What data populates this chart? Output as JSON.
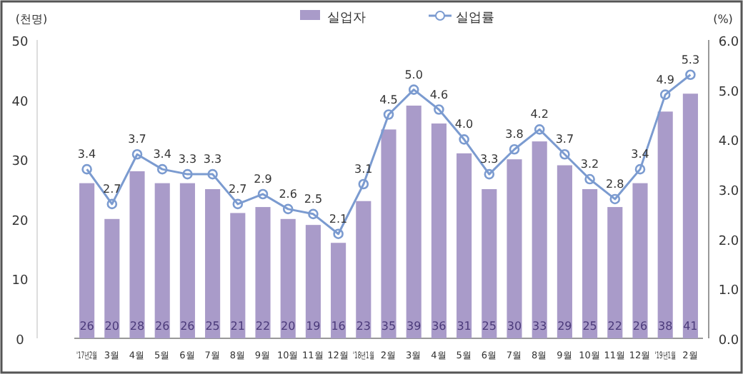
{
  "chart_data": {
    "type": "bar",
    "ylabel": "(천명)",
    "y2label": "(%)",
    "categories": [
      "'17년2월",
      "3월",
      "4월",
      "5월",
      "6월",
      "7월",
      "8월",
      "9월",
      "10월",
      "11월",
      "12월",
      "'18년1월",
      "2월",
      "3월",
      "4월",
      "5월",
      "6월",
      "7월",
      "8월",
      "9월",
      "10월",
      "11월",
      "12월",
      "'19년1월",
      "2월"
    ],
    "series": [
      {
        "name": "실업자",
        "type": "bar",
        "color": "#a99bc9",
        "values": [
          26,
          20,
          28,
          26,
          26,
          25,
          21,
          22,
          20,
          19,
          16,
          23,
          35,
          39,
          36,
          31,
          25,
          30,
          33,
          29,
          25,
          22,
          26,
          38,
          41
        ],
        "value_labels": [
          "26",
          "20",
          "28",
          "26",
          "26",
          "25",
          "21",
          "22",
          "20",
          "19",
          "16",
          "23",
          "35",
          "39",
          "36",
          "31",
          "25",
          "30",
          "33",
          "29",
          "25",
          "22",
          "26",
          "38",
          "41"
        ]
      },
      {
        "name": "실업률",
        "type": "line",
        "axis": "y2",
        "color": "#7b9bd0",
        "values": [
          3.4,
          2.7,
          3.7,
          3.4,
          3.3,
          3.3,
          2.7,
          2.9,
          2.6,
          2.5,
          2.1,
          3.1,
          4.5,
          5.0,
          4.6,
          4.0,
          3.3,
          3.8,
          4.2,
          3.7,
          3.2,
          2.8,
          3.4,
          4.9,
          5.3
        ],
        "value_labels": [
          "3.4",
          "2.7",
          "3.7",
          "3.4",
          "3.3",
          "3.3",
          "2.7",
          "2.9",
          "2.6",
          "2.5",
          "2.1",
          "3.1",
          "4.5",
          "5.0",
          "4.6",
          "4.0",
          "3.3",
          "3.8",
          "4.2",
          "3.7",
          "3.2",
          "2.8",
          "3.4",
          "4.9",
          "5.3"
        ]
      }
    ],
    "ylim": [
      0,
      50
    ],
    "yticks": [
      0,
      10,
      20,
      30,
      40,
      50
    ],
    "y2lim": [
      0,
      6
    ],
    "y2ticks": [
      {
        "value": 0,
        "label": "0.0"
      },
      {
        "value": 1,
        "label": "1.0"
      },
      {
        "value": 2,
        "label": "2.0"
      },
      {
        "value": 3,
        "label": "3.0"
      },
      {
        "value": 4,
        "label": "4.0"
      },
      {
        "value": 5,
        "label": "5.0"
      },
      {
        "value": 6,
        "label": "6.0"
      }
    ],
    "legend": "top",
    "marker": "circle",
    "grid": false
  }
}
